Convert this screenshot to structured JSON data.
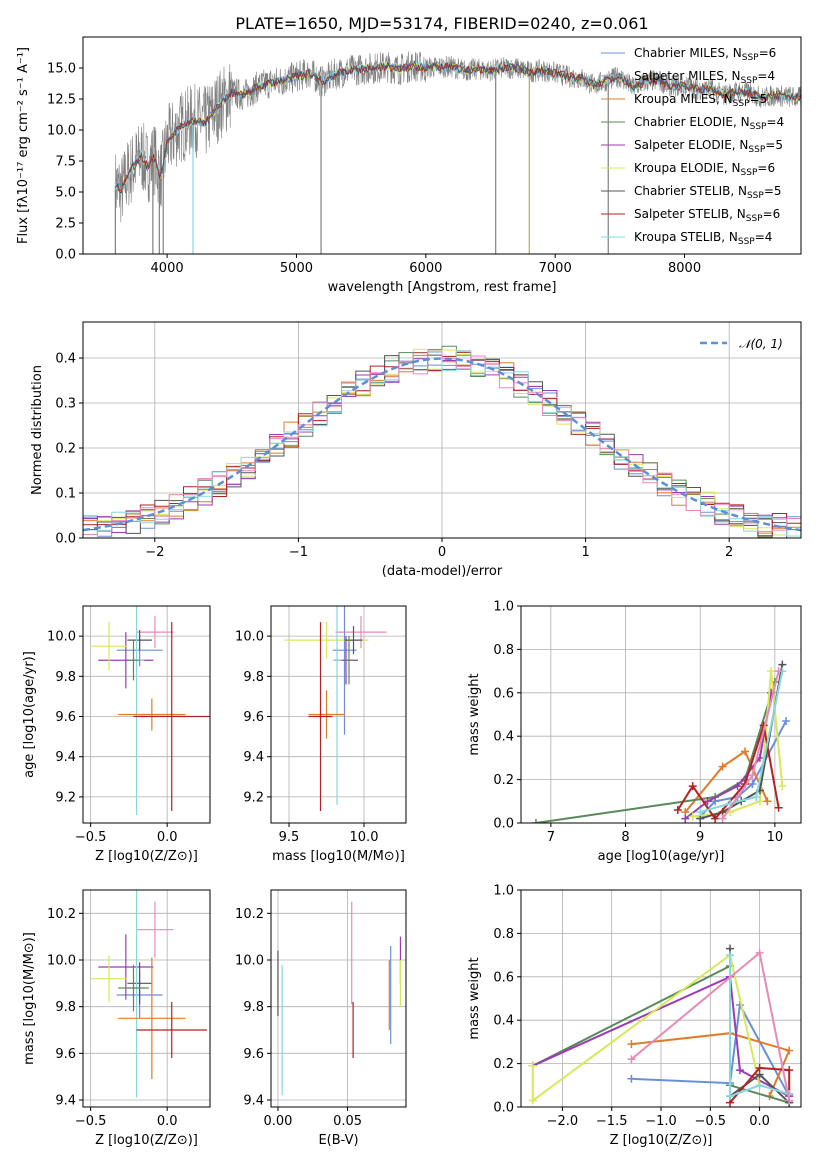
{
  "colors": {
    "chabrier_miles": "#6a8fd8",
    "salpeter_miles": "#8aa0c8",
    "kroupa_miles": "#e07b2a",
    "chabrier_elodie": "#5a8a5a",
    "salpeter_elodie": "#9b3bb5",
    "kroupa_elodie": "#d8e85a",
    "chabrier_stelib": "#555555",
    "salpeter_stelib": "#b22222",
    "kroupa_stelib": "#86d8e0",
    "pink": "#e88ab8",
    "data_gray": "#808080",
    "normal_curve": "#5b8fd9"
  },
  "chart_data": [
    {
      "id": "spectrum",
      "type": "line",
      "title": "PLATE=1650, MJD=53174, FIBERID=0240, z=0.061",
      "xlabel": "wavelength [Angstrom, rest frame]",
      "ylabel": "Flux [fλ10⁻¹⁷ erg cm⁻² s⁻¹ A⁻¹]",
      "xlim": [
        3350,
        8900
      ],
      "ylim": [
        0,
        17.5
      ],
      "xticks": [
        "4000",
        "5000",
        "6000",
        "7000",
        "8000"
      ],
      "yticks": [
        "0.0",
        "2.5",
        "5.0",
        "7.5",
        "10.0",
        "12.5",
        "15.0"
      ],
      "xtick_values": [
        4000,
        5000,
        6000,
        7000,
        8000
      ],
      "ytick_values": [
        0,
        2.5,
        5,
        7.5,
        10,
        12.5,
        15
      ],
      "continuum": {
        "x": [
          3600,
          3650,
          3700,
          3750,
          3800,
          3850,
          3900,
          3950,
          4000,
          4100,
          4200,
          4300,
          4400,
          4500,
          4600,
          4700,
          4800,
          4900,
          5000,
          5100,
          5200,
          5300,
          5400,
          5500,
          5600,
          5700,
          5800,
          5900,
          6000,
          6100,
          6200,
          6300,
          6400,
          6500,
          6600,
          6700,
          6800,
          6900,
          7000,
          7100,
          7200,
          7300,
          7400,
          7500,
          7600,
          7700,
          7800,
          7900,
          8000,
          8100,
          8200,
          8300,
          8400,
          8500,
          8600,
          8700,
          8800,
          8900
        ],
        "y": [
          5.5,
          5.2,
          6.5,
          7.2,
          8.0,
          7.0,
          7.8,
          6.2,
          9.0,
          10.2,
          10.8,
          10.6,
          12.0,
          13.0,
          12.8,
          13.5,
          13.8,
          14.0,
          14.3,
          14.6,
          13.9,
          14.5,
          14.8,
          14.9,
          15.0,
          15.1,
          14.9,
          15.2,
          15.0,
          15.1,
          15.1,
          14.8,
          14.9,
          14.8,
          15.0,
          15.0,
          14.7,
          14.8,
          14.6,
          14.3,
          14.2,
          13.6,
          14.0,
          14.3,
          13.4,
          13.9,
          14.0,
          13.5,
          13.6,
          13.3,
          13.3,
          12.8,
          13.1,
          13.0,
          12.6,
          12.8,
          12.7,
          12.6
        ]
      },
      "spikes_down": [
        3600,
        3890,
        3940,
        3970,
        4200,
        5190,
        6540,
        6800,
        7410
      ],
      "legend": [
        {
          "label": "Chabrier MILES, N",
          "sub": "SSP",
          "n": "=6",
          "color": "chabrier_miles"
        },
        {
          "label": "Salpeter MILES, N",
          "sub": "SSP",
          "n": "=4",
          "color": "salpeter_miles"
        },
        {
          "label": "Kroupa MILES, N",
          "sub": "SSP",
          "n": "=5",
          "color": "kroupa_miles"
        },
        {
          "label": "Chabrier ELODIE, N",
          "sub": "SSP",
          "n": "=4",
          "color": "chabrier_elodie"
        },
        {
          "label": "Salpeter ELODIE, N",
          "sub": "SSP",
          "n": "=5",
          "color": "salpeter_elodie"
        },
        {
          "label": "Kroupa ELODIE, N",
          "sub": "SSP",
          "n": "=6",
          "color": "kroupa_elodie"
        },
        {
          "label": "Chabrier STELIB, N",
          "sub": "SSP",
          "n": "=5",
          "color": "chabrier_stelib"
        },
        {
          "label": "Salpeter STELIB, N",
          "sub": "SSP",
          "n": "=6",
          "color": "salpeter_stelib"
        },
        {
          "label": "Kroupa STELIB, N",
          "sub": "SSP",
          "n": "=4",
          "color": "kroupa_stelib"
        }
      ]
    },
    {
      "id": "residuals",
      "type": "line",
      "xlabel": "(data-model)/error",
      "ylabel": "Normed distribution",
      "xlim": [
        -2.5,
        2.5
      ],
      "ylim": [
        0,
        0.48
      ],
      "xticks": [
        "−2",
        "−1",
        "0",
        "1",
        "2"
      ],
      "xtick_values": [
        -2,
        -1,
        0,
        1,
        2
      ],
      "yticks": [
        "0.0",
        "0.1",
        "0.2",
        "0.3",
        "0.4"
      ],
      "ytick_values": [
        0,
        0.1,
        0.2,
        0.3,
        0.4
      ],
      "bin_width": 0.1,
      "legend_label": "𝒩(0, 1)"
    },
    {
      "id": "age_vs_Z",
      "type": "scatter",
      "xlabel": "Z [log10(Z/Z⊙)]",
      "ylabel": "age  [log10(age/yr)]",
      "xlim": [
        -0.55,
        0.28
      ],
      "ylim": [
        9.07,
        10.15
      ],
      "xticks": [
        "−0.5",
        "0.0"
      ],
      "xtick_values": [
        -0.5,
        0.0
      ],
      "yticks": [
        "9.2",
        "9.4",
        "9.6",
        "9.8",
        "10.0"
      ],
      "ytick_values": [
        9.2,
        9.4,
        9.6,
        9.8,
        10.0
      ],
      "points": [
        {
          "x": -0.08,
          "y": 10.02,
          "xerr": 0.12,
          "yerr": 0.08,
          "color": "pink"
        },
        {
          "x": -0.18,
          "y": 9.93,
          "xerr": 0.15,
          "yerr": 0.08,
          "color": "chabrier_miles"
        },
        {
          "x": -0.27,
          "y": 9.88,
          "xerr": 0.18,
          "yerr": 0.14,
          "color": "salpeter_elodie"
        },
        {
          "x": -0.38,
          "y": 9.95,
          "xerr": 0.12,
          "yerr": 0.12,
          "color": "kroupa_elodie"
        },
        {
          "x": -0.18,
          "y": 9.98,
          "xerr": 0.08,
          "yerr": 0.05,
          "color": "chabrier_stelib"
        },
        {
          "x": -0.2,
          "y": 9.88,
          "xerr": 0.05,
          "yerr": 0.77,
          "color": "kroupa_stelib"
        },
        {
          "x": -0.1,
          "y": 9.61,
          "xerr": 0.22,
          "yerr": 0.08,
          "color": "kroupa_miles"
        },
        {
          "x": 0.03,
          "y": 9.6,
          "xerr": 0.25,
          "yerr": 0.47,
          "color": "salpeter_stelib"
        },
        {
          "x": -0.22,
          "y": 9.88,
          "xerr": 0.04,
          "yerr": 0.1,
          "color": "chabrier_elodie"
        }
      ]
    },
    {
      "id": "age_vs_mass",
      "type": "scatter",
      "xlabel": "mass [log10(M/M⊙)]",
      "ylabel": "",
      "xlim": [
        9.38,
        10.28
      ],
      "ylim": [
        9.07,
        10.15
      ],
      "xticks": [
        "9.5",
        "10.0"
      ],
      "xtick_values": [
        9.5,
        10.0
      ],
      "yticks": [
        "9.2",
        "9.4",
        "9.6",
        "9.8",
        "10.0"
      ],
      "ytick_values": [
        9.2,
        9.4,
        9.6,
        9.8,
        10.0
      ],
      "points": [
        {
          "x": 9.98,
          "y": 10.02,
          "xerr": 0.17,
          "yerr": 0.08,
          "color": "pink"
        },
        {
          "x": 9.87,
          "y": 9.93,
          "xerr": 0.08,
          "yerr": 0.42,
          "color": "chabrier_miles"
        },
        {
          "x": 9.88,
          "y": 9.88,
          "xerr": 0.08,
          "yerr": 0.12,
          "color": "salpeter_elodie"
        },
        {
          "x": 9.75,
          "y": 9.98,
          "xerr": 0.28,
          "yerr": 0.09,
          "color": "kroupa_elodie"
        },
        {
          "x": 9.93,
          "y": 9.98,
          "xerr": 0.06,
          "yerr": 0.07,
          "color": "chabrier_stelib"
        },
        {
          "x": 9.82,
          "y": 9.88,
          "xerr": 0.03,
          "yerr": 0.72,
          "color": "kroupa_stelib"
        },
        {
          "x": 9.75,
          "y": 9.61,
          "xerr": 0.12,
          "yerr": 0.12,
          "color": "kroupa_miles"
        },
        {
          "x": 9.71,
          "y": 9.6,
          "xerr": 0.08,
          "yerr": 0.47,
          "color": "salpeter_stelib"
        },
        {
          "x": 9.9,
          "y": 9.88,
          "xerr": 0.03,
          "yerr": 0.12,
          "color": "chabrier_elodie"
        }
      ]
    },
    {
      "id": "weight_vs_age",
      "type": "line",
      "xlabel": "age  [log10(age/yr)]",
      "ylabel": "mass weight",
      "xlim": [
        6.6,
        10.35
      ],
      "ylim": [
        0,
        1.0
      ],
      "xticks": [
        "7",
        "8",
        "9",
        "10"
      ],
      "xtick_values": [
        7,
        8,
        9,
        10
      ],
      "yticks": [
        "0.0",
        "0.2",
        "0.4",
        "0.6",
        "0.8",
        "1.0"
      ],
      "ytick_values": [
        0,
        0.2,
        0.4,
        0.6,
        0.8,
        1.0
      ],
      "series": [
        {
          "color": "chabrier_miles",
          "x": [
            9.0,
            9.2,
            9.5,
            9.7,
            10.15
          ],
          "y": [
            0.03,
            0.1,
            0.12,
            0.18,
            0.47
          ]
        },
        {
          "color": "kroupa_miles",
          "x": [
            8.8,
            9.3,
            9.6,
            9.9
          ],
          "y": [
            0.05,
            0.26,
            0.33,
            0.1
          ]
        },
        {
          "color": "chabrier_elodie",
          "x": [
            6.8,
            9.2,
            9.6,
            10.0
          ],
          "y": [
            0.0,
            0.12,
            0.2,
            0.65
          ]
        },
        {
          "color": "salpeter_elodie",
          "x": [
            8.8,
            9.1,
            9.5,
            9.8,
            9.95
          ],
          "y": [
            0.02,
            0.1,
            0.17,
            0.3,
            0.6
          ]
        },
        {
          "color": "kroupa_elodie",
          "x": [
            8.9,
            9.4,
            9.8,
            9.95,
            10.1
          ],
          "y": [
            0.03,
            0.05,
            0.1,
            0.7,
            0.17
          ]
        },
        {
          "color": "chabrier_stelib",
          "x": [
            9.0,
            9.3,
            9.55,
            9.8,
            10.1
          ],
          "y": [
            0.02,
            0.05,
            0.1,
            0.15,
            0.73
          ]
        },
        {
          "color": "salpeter_stelib",
          "x": [
            8.7,
            8.9,
            9.2,
            9.6,
            9.85,
            10.05
          ],
          "y": [
            0.06,
            0.17,
            0.02,
            0.18,
            0.45,
            0.07
          ]
        },
        {
          "color": "kroupa_stelib",
          "x": [
            9.0,
            9.4,
            9.75,
            10.1
          ],
          "y": [
            0.05,
            0.09,
            0.12,
            0.7
          ]
        },
        {
          "color": "pink",
          "x": [
            9.3,
            9.7,
            10.05
          ],
          "y": [
            0.02,
            0.22,
            0.7
          ]
        }
      ]
    },
    {
      "id": "mass_vs_Z",
      "type": "scatter",
      "xlabel": "Z [log10(Z/Z⊙)]",
      "ylabel": "mass [log10(M/M⊙)]",
      "xlim": [
        -0.55,
        0.28
      ],
      "ylim": [
        9.37,
        10.3
      ],
      "xticks": [
        "−0.5",
        "0.0"
      ],
      "xtick_values": [
        -0.5,
        0.0
      ],
      "yticks": [
        "9.4",
        "9.6",
        "9.8",
        "10.0",
        "10.2"
      ],
      "ytick_values": [
        9.4,
        9.6,
        9.8,
        10.0,
        10.2
      ],
      "points": [
        {
          "x": -0.08,
          "y": 10.13,
          "xerr": 0.12,
          "yerr": 0.12,
          "color": "pink"
        },
        {
          "x": -0.18,
          "y": 9.85,
          "xerr": 0.15,
          "yerr": 0.1,
          "color": "chabrier_miles"
        },
        {
          "x": -0.27,
          "y": 9.97,
          "xerr": 0.18,
          "yerr": 0.14,
          "color": "salpeter_elodie"
        },
        {
          "x": -0.38,
          "y": 9.92,
          "xerr": 0.12,
          "yerr": 0.1,
          "color": "kroupa_elodie"
        },
        {
          "x": -0.18,
          "y": 9.9,
          "xerr": 0.08,
          "yerr": 0.09,
          "color": "chabrier_stelib"
        },
        {
          "x": -0.2,
          "y": 9.88,
          "xerr": 0.05,
          "yerr": 0.47,
          "color": "kroupa_stelib"
        },
        {
          "x": -0.1,
          "y": 9.75,
          "xerr": 0.22,
          "yerr": 0.26,
          "color": "kroupa_miles"
        },
        {
          "x": 0.03,
          "y": 9.7,
          "xerr": 0.23,
          "yerr": 0.12,
          "color": "salpeter_stelib"
        },
        {
          "x": -0.22,
          "y": 9.88,
          "xerr": 0.1,
          "yerr": 0.1,
          "color": "chabrier_elodie"
        }
      ]
    },
    {
      "id": "mass_vs_ebv",
      "type": "scatter",
      "xlabel": "E(B-V)",
      "ylabel": "",
      "xlim": [
        -0.005,
        0.092
      ],
      "ylim": [
        9.37,
        10.3
      ],
      "xticks": [
        "0.00",
        "0.05"
      ],
      "xtick_values": [
        0.0,
        0.05
      ],
      "yticks": [
        "9.4",
        "9.6",
        "9.8",
        "10.0",
        "10.2"
      ],
      "ytick_values": [
        9.4,
        9.6,
        9.8,
        10.0,
        10.2
      ],
      "points": [
        {
          "x": 0.0,
          "y": 9.9,
          "xerr": 0,
          "yerr": 0.14,
          "color": "chabrier_stelib"
        },
        {
          "x": 0.003,
          "y": 9.7,
          "xerr": 0,
          "yerr": 0.28,
          "color": "kroupa_stelib"
        },
        {
          "x": 0.053,
          "y": 10.03,
          "xerr": 0,
          "yerr": 0.22,
          "color": "pink"
        },
        {
          "x": 0.054,
          "y": 9.7,
          "xerr": 0,
          "yerr": 0.12,
          "color": "salpeter_stelib"
        },
        {
          "x": 0.081,
          "y": 9.85,
          "xerr": 0,
          "yerr": 0.21,
          "color": "chabrier_miles"
        },
        {
          "x": 0.08,
          "y": 9.85,
          "xerr": 0,
          "yerr": 0.15,
          "color": "kroupa_miles"
        },
        {
          "x": 0.088,
          "y": 10.0,
          "xerr": 0,
          "yerr": 0.1,
          "color": "salpeter_elodie"
        },
        {
          "x": 0.088,
          "y": 9.9,
          "xerr": 0,
          "yerr": 0.1,
          "color": "kroupa_elodie"
        }
      ]
    },
    {
      "id": "weight_vs_Z",
      "type": "line",
      "xlabel": "Z [log10(Z/Z⊙)]",
      "ylabel": "mass weight",
      "xlim": [
        -2.42,
        0.42
      ],
      "ylim": [
        0,
        1.0
      ],
      "xticks": [
        "−2.0",
        "−1.5",
        "−1.0",
        "−0.5",
        "0.0"
      ],
      "xtick_values": [
        -2.0,
        -1.5,
        -1.0,
        -0.5,
        0.0
      ],
      "yticks": [
        "0.0",
        "0.2",
        "0.4",
        "0.6",
        "0.8",
        "1.0"
      ],
      "ytick_values": [
        0,
        0.2,
        0.4,
        0.6,
        0.8,
        1.0
      ],
      "series": [
        {
          "color": "chabrier_miles",
          "x": [
            -1.3,
            -0.3,
            -0.2,
            0.3
          ],
          "y": [
            0.13,
            0.11,
            0.47,
            0.05
          ]
        },
        {
          "color": "kroupa_miles",
          "x": [
            -1.3,
            -0.3,
            0.3,
            0.1
          ],
          "y": [
            0.29,
            0.34,
            0.26,
            0.05
          ]
        },
        {
          "color": "chabrier_elodie",
          "x": [
            -2.3,
            -0.3,
            -0.3,
            0.3
          ],
          "y": [
            0.19,
            0.65,
            0.1,
            0.02
          ]
        },
        {
          "color": "salpeter_elodie",
          "x": [
            -2.3,
            -0.3,
            -0.2,
            0.3
          ],
          "y": [
            0.19,
            0.6,
            0.17,
            0.05
          ]
        },
        {
          "color": "kroupa_elodie",
          "x": [
            -2.3,
            -2.3,
            -0.3,
            0.0
          ],
          "y": [
            0.19,
            0.03,
            0.7,
            0.1
          ]
        },
        {
          "color": "chabrier_stelib",
          "x": [
            -0.3,
            -0.3,
            0.0,
            0.3
          ],
          "y": [
            0.73,
            0.05,
            0.15,
            0.02
          ]
        },
        {
          "color": "salpeter_stelib",
          "x": [
            -0.3,
            0.0,
            0.3,
            0.3
          ],
          "y": [
            0.02,
            0.18,
            0.17,
            0.06
          ]
        },
        {
          "color": "kroupa_stelib",
          "x": [
            -0.3,
            -0.3,
            0.0,
            0.3
          ],
          "y": [
            0.7,
            0.05,
            0.1,
            0.06
          ]
        },
        {
          "color": "pink",
          "x": [
            -1.3,
            0.0,
            0.3
          ],
          "y": [
            0.22,
            0.71,
            0.03
          ]
        }
      ]
    }
  ]
}
